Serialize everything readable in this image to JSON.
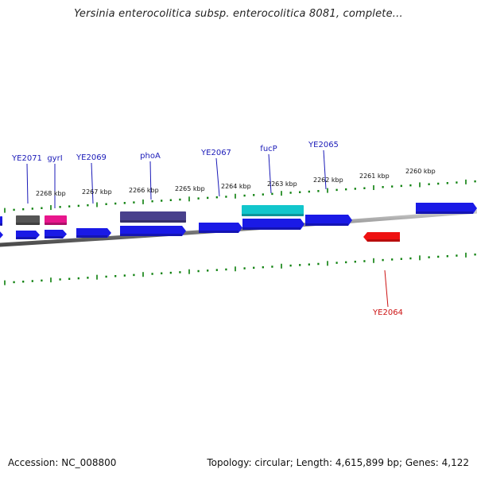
{
  "title": "Yersinia enterocolitica subsp. enterocolitica 8081, complete...",
  "accession": "Accession: NC_008800",
  "topology": "Topology: circular; Length: 4,615,899 bp; Genes: 4,122",
  "colors": {
    "backbone": "#7b7b7b",
    "tick": "#0a7f0a",
    "gene_blue": "#1a1ae6",
    "label_blue": "#1a1ab8",
    "label_red": "#cc1111",
    "red_gene": "#ee1111",
    "gray_feature": "#555555",
    "magenta_feature": "#e8168c",
    "purple_feature": "#48408c",
    "cyan_feature": "#12c6cc"
  },
  "scale_labels": [
    "2268 kbp",
    "2267 kbp",
    "2266 kbp",
    "2265 kbp",
    "2264 kbp",
    "2263 kbp",
    "2262 kbp",
    "2261 kbp",
    "2260 kbp"
  ],
  "gene_labels_top": [
    "YE2071",
    "gyrI",
    "YE2069",
    "phoA",
    "YE2067",
    "fucP",
    "YE2065"
  ],
  "gene_labels_bottom": [
    "YE2064"
  ]
}
